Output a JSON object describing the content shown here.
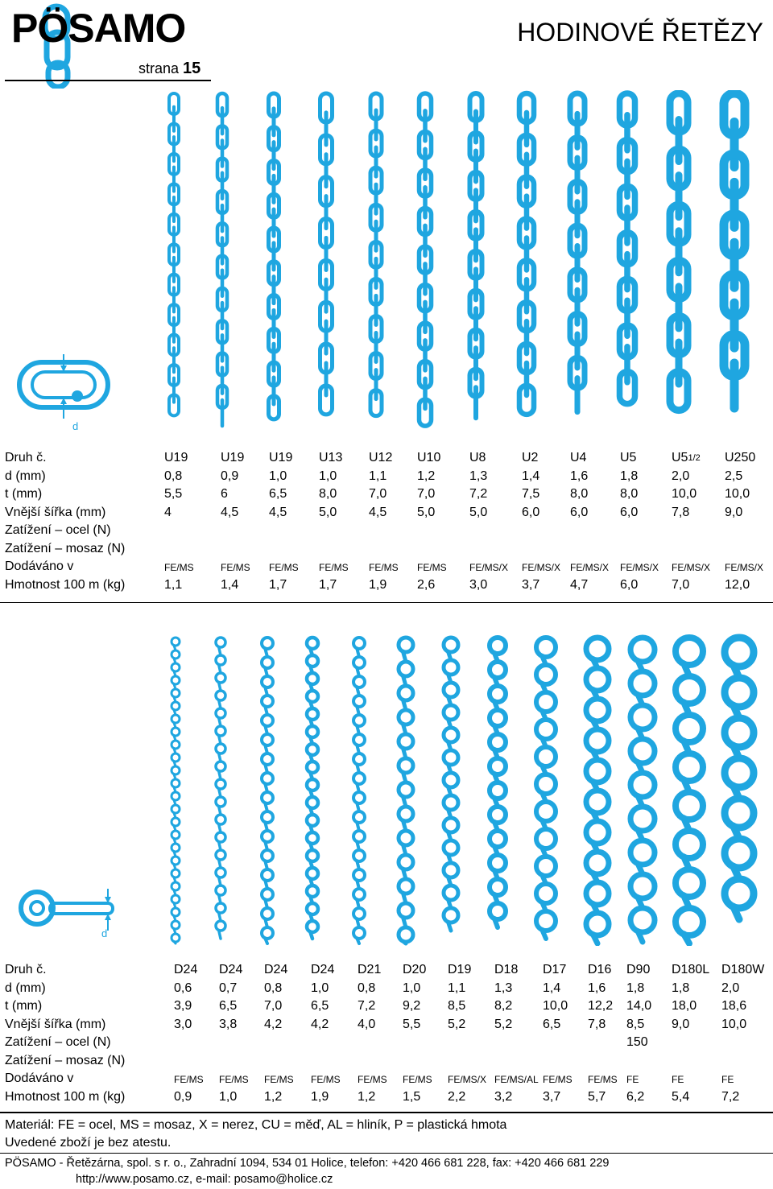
{
  "brand": {
    "name": "PÖSAMO",
    "page_label": "strana",
    "page_number": "15",
    "accent_color": "#1fa6e0"
  },
  "title": "HODINOVÉ ŘETĚZY",
  "diagram1": {
    "dim_label": "d"
  },
  "diagram2": {
    "dim_label": "d"
  },
  "table1": {
    "labels": [
      "Druh č.",
      "d (mm)",
      "t (mm)",
      "Vnější šířka (mm)",
      "Zatížení – ocel (N)",
      "Zatížení – mosaz (N)",
      "Dodáváno v",
      "Hmotnost 100 m (kg)"
    ],
    "columns": [
      {
        "type": "U19",
        "d": "0,8",
        "t": "5,5",
        "w": "4",
        "steel": "",
        "brass": "",
        "supply": "FE/MS",
        "mass": "1,1"
      },
      {
        "type": "U19",
        "d": "0,9",
        "t": "6",
        "w": "4,5",
        "steel": "",
        "brass": "",
        "supply": "FE/MS",
        "mass": "1,4"
      },
      {
        "type": "U19",
        "d": "1,0",
        "t": "6,5",
        "w": "4,5",
        "steel": "",
        "brass": "",
        "supply": "FE/MS",
        "mass": "1,7"
      },
      {
        "type": "U13",
        "d": "1,0",
        "t": "8,0",
        "w": "5,0",
        "steel": "",
        "brass": "",
        "supply": "FE/MS",
        "mass": "1,7"
      },
      {
        "type": "U12",
        "d": "1,1",
        "t": "7,0",
        "w": "4,5",
        "steel": "",
        "brass": "",
        "supply": "FE/MS",
        "mass": "1,9"
      },
      {
        "type": "U10",
        "d": "1,2",
        "t": "7,0",
        "w": "5,0",
        "steel": "",
        "brass": "",
        "supply": "FE/MS",
        "mass": "2,6"
      },
      {
        "type": "U8",
        "d": "1,3",
        "t": "7,2",
        "w": "5,0",
        "steel": "",
        "brass": "",
        "supply": "FE/MS/X",
        "mass": "3,0"
      },
      {
        "type": "U2",
        "d": "1,4",
        "t": "7,5",
        "w": "6,0",
        "steel": "",
        "brass": "",
        "supply": "FE/MS/X",
        "mass": "3,7"
      },
      {
        "type": "U4",
        "d": "1,6",
        "t": "8,0",
        "w": "6,0",
        "steel": "",
        "brass": "",
        "supply": "FE/MS/X",
        "mass": "4,7"
      },
      {
        "type": "U5",
        "d": "1,8",
        "t": "8,0",
        "w": "6,0",
        "steel": "",
        "brass": "",
        "supply": "FE/MS/X",
        "mass": "6,0"
      },
      {
        "type": "U5",
        "type_sub": "1/2",
        "d": "2,0",
        "t": "10,0",
        "w": "7,8",
        "steel": "",
        "brass": "",
        "supply": "FE/MS/X",
        "mass": "7,0"
      },
      {
        "type": "U250",
        "d": "2,5",
        "t": "10,0",
        "w": "9,0",
        "steel": "",
        "brass": "",
        "supply": "FE/MS/X",
        "mass": "12,0"
      }
    ]
  },
  "table2": {
    "labels": [
      "Druh č.",
      "d (mm)",
      "t (mm)",
      "Vnější šířka (mm)",
      "Zatížení – ocel (N)",
      "Zatížení – mosaz (N)",
      "Dodáváno v",
      "Hmotnost 100 m (kg)"
    ],
    "columns": [
      {
        "type": "D24",
        "d": "0,6",
        "t": "3,9",
        "w": "3,0",
        "steel": "",
        "brass": "",
        "supply": "FE/MS",
        "mass": "0,9"
      },
      {
        "type": "D24",
        "d": "0,7",
        "t": "6,5",
        "w": "3,8",
        "steel": "",
        "brass": "",
        "supply": "FE/MS",
        "mass": "1,0"
      },
      {
        "type": "D24",
        "d": "0,8",
        "t": "7,0",
        "w": "4,2",
        "steel": "",
        "brass": "",
        "supply": "FE/MS",
        "mass": "1,2"
      },
      {
        "type": "D24",
        "d": "1,0",
        "t": "6,5",
        "w": "4,2",
        "steel": "",
        "brass": "",
        "supply": "FE/MS",
        "mass": "1,9"
      },
      {
        "type": "D21",
        "d": "0,8",
        "t": "7,2",
        "w": "4,0",
        "steel": "",
        "brass": "",
        "supply": "FE/MS",
        "mass": "1,2"
      },
      {
        "type": "D20",
        "d": "1,0",
        "t": "9,2",
        "w": "5,5",
        "steel": "",
        "brass": "",
        "supply": "FE/MS",
        "mass": "1,5"
      },
      {
        "type": "D19",
        "d": "1,1",
        "t": "8,5",
        "w": "5,2",
        "steel": "",
        "brass": "",
        "supply": "FE/MS/X",
        "mass": "2,2"
      },
      {
        "type": "D18",
        "d": "1,3",
        "t": "8,2",
        "w": "5,2",
        "steel": "",
        "brass": "",
        "supply": "FE/MS/AL",
        "mass": "3,2"
      },
      {
        "type": "D17",
        "d": "1,4",
        "t": "10,0",
        "w": "6,5",
        "steel": "",
        "brass": "",
        "supply": "FE/MS",
        "mass": "3,7"
      },
      {
        "type": "D16",
        "d": "1,6",
        "t": "12,2",
        "w": "7,8",
        "steel": "",
        "brass": "",
        "supply": "FE/MS",
        "mass": "5,7"
      },
      {
        "type": "D90",
        "d": "1,8",
        "t": "14,0",
        "w": "8,5",
        "steel": "150",
        "brass": "",
        "supply": "FE",
        "mass": "6,2"
      },
      {
        "type": "D180L",
        "d": "1,8",
        "t": "18,0",
        "w": "9,0",
        "steel": "",
        "brass": "",
        "supply": "FE",
        "mass": "5,4"
      },
      {
        "type": "D180W",
        "d": "2,0",
        "t": "18,6",
        "w": "10,0",
        "steel": "",
        "brass": "",
        "supply": "FE",
        "mass": "7,2"
      }
    ]
  },
  "legend": {
    "materials": "Materiál: FE = ocel, MS = mosaz, X = nerez, CU = měď, AL = hliník, P = plastická hmota",
    "note": "Uvedené zboží je bez atestu."
  },
  "footer": {
    "company": "PÖSAMO - Řetězárna, spol. s r. o., Zahradní 1094, 534 01 Holice, telefon: +420 466 681 228, fax: +420 466 681 229",
    "web": "http://www.posamo.cz, e-mail: posamo@holice.cz"
  }
}
